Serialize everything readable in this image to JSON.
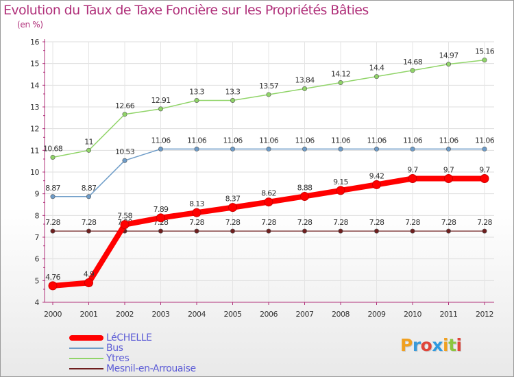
{
  "title": "Evolution du Taux de Taxe Foncière sur les Propriétés Bâties",
  "unit_label": "(en %)",
  "logo": {
    "letters": [
      "P",
      "r",
      "o",
      "x",
      "i",
      "t",
      "i"
    ],
    "colors": [
      "#f0a020",
      "#3a9ad9",
      "#e0453a",
      "#2f9ae0",
      "#f0a020",
      "#8cc63f",
      "#e0453a"
    ]
  },
  "chart_data": {
    "type": "line",
    "x": [
      "2000",
      "2001",
      "2002",
      "2003",
      "2004",
      "2005",
      "2006",
      "2007",
      "2008",
      "2009",
      "2010",
      "2011",
      "2012"
    ],
    "ylim": [
      4,
      16
    ],
    "yticks": [
      "4",
      "5",
      "6",
      "7",
      "8",
      "9",
      "10",
      "11",
      "12",
      "13",
      "14",
      "15",
      "16"
    ],
    "grid": true,
    "legend_position": "bottom-left",
    "series": [
      {
        "name": "Mesnil-en-Arrouaise",
        "color": "#6e1e1e",
        "width": 1.2,
        "values": [
          7.28,
          7.28,
          7.28,
          7.28,
          7.28,
          7.28,
          7.28,
          7.28,
          7.28,
          7.28,
          7.28,
          7.28,
          7.28
        ],
        "labels": [
          "7.28",
          "7.28",
          "7.28",
          "7.28",
          "7.28",
          "7.28",
          "7.28",
          "7.28",
          "7.28",
          "7.28",
          "7.28",
          "7.28",
          "7.28"
        ]
      },
      {
        "name": "Ytres",
        "color": "#90d468",
        "width": 1.5,
        "values": [
          10.68,
          11,
          12.66,
          12.91,
          13.3,
          13.3,
          13.57,
          13.84,
          14.12,
          14.4,
          14.68,
          14.97,
          15.16
        ],
        "labels": [
          "10.68",
          "11",
          "12.66",
          "12.91",
          "13.3",
          "13.3",
          "13.57",
          "13.84",
          "14.12",
          "14.4",
          "14.68",
          "14.97",
          "15.16"
        ]
      },
      {
        "name": "Bus",
        "color": "#6e9cc8",
        "width": 1.5,
        "values": [
          8.87,
          8.87,
          10.53,
          11.06,
          11.06,
          11.06,
          11.06,
          11.06,
          11.06,
          11.06,
          11.06,
          11.06,
          11.06
        ],
        "labels": [
          "8.87",
          "8.87",
          "10.53",
          "11.06",
          "11.06",
          "11.06",
          "11.06",
          "11.06",
          "11.06",
          "11.06",
          "11.06",
          "11.06",
          "11.06"
        ]
      },
      {
        "name": "LéCHELLE",
        "color": "#ff0000",
        "width": 8,
        "values": [
          4.76,
          4.9,
          7.58,
          7.89,
          8.13,
          8.37,
          8.62,
          8.88,
          9.15,
          9.42,
          9.7,
          9.7,
          9.7
        ],
        "labels": [
          "4.76",
          "4.9",
          "7.58",
          "7.89",
          "8.13",
          "8.37",
          "8.62",
          "8.88",
          "9.15",
          "9.42",
          "9.7",
          "9.7",
          "9.7"
        ]
      }
    ],
    "legend_order": [
      "LéCHELLE",
      "Bus",
      "Ytres",
      "Mesnil-en-Arrouaise"
    ]
  }
}
